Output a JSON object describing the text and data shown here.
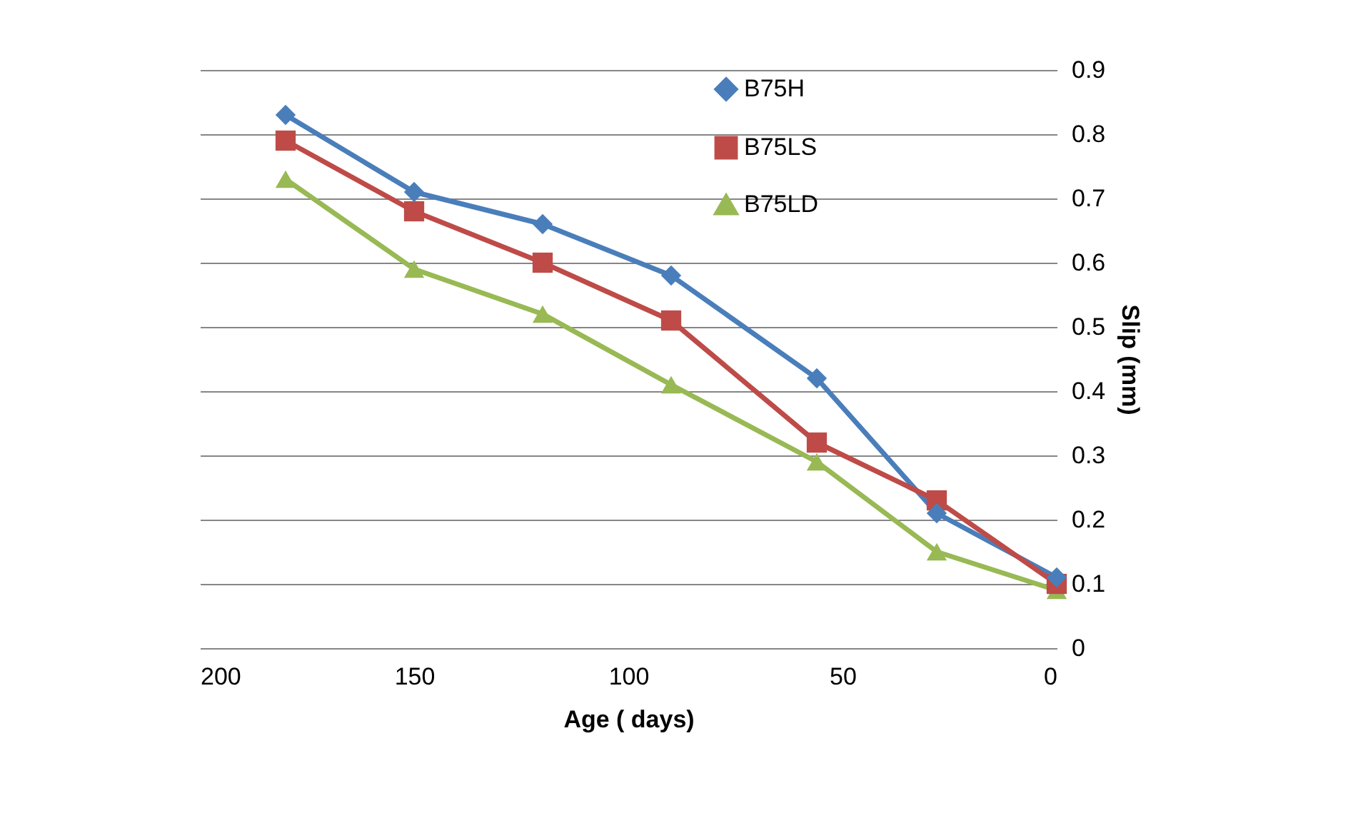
{
  "chart_data": {
    "type": "line",
    "xlabel": "Age ( days)",
    "ylabel": "Slip (mm)",
    "x": [
      180,
      150,
      120,
      90,
      56,
      28,
      0
    ],
    "xlim": [
      200,
      0
    ],
    "xticks": [
      200,
      150,
      100,
      50,
      0
    ],
    "ylim": [
      0,
      0.9
    ],
    "yticks": [
      0,
      0.1,
      0.2,
      0.3,
      0.4,
      0.5,
      0.6,
      0.7,
      0.8,
      0.9
    ],
    "grid": "y",
    "legend": "top right",
    "line_style": "solid",
    "series": [
      {
        "name": "B75H",
        "color": "#4a7ebb",
        "marker": "diamond",
        "values": [
          0.83,
          0.71,
          0.66,
          0.58,
          0.42,
          0.21,
          0.11
        ]
      },
      {
        "name": "B75LS",
        "color": "#be4b48",
        "marker": "square",
        "values": [
          0.79,
          0.68,
          0.6,
          0.51,
          0.32,
          0.23,
          0.1
        ]
      },
      {
        "name": "B75LD",
        "color": "#98b954",
        "marker": "triangle",
        "values": [
          0.73,
          0.59,
          0.52,
          0.41,
          0.29,
          0.15,
          0.09
        ]
      }
    ]
  }
}
